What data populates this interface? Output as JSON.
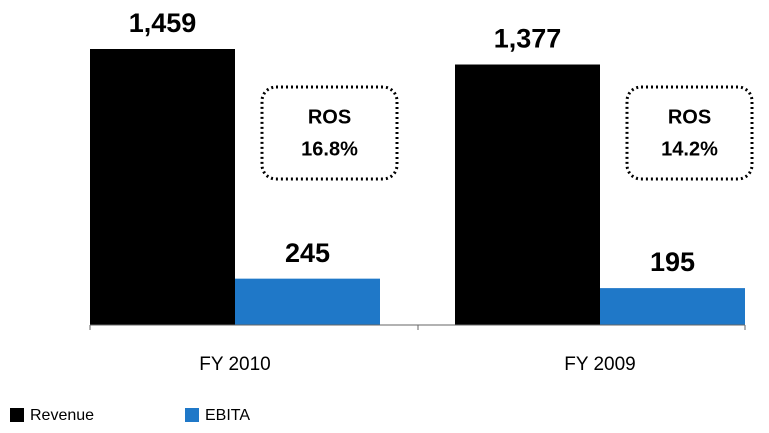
{
  "chart_data": {
    "type": "bar",
    "categories": [
      "FY 2010",
      "FY 2009"
    ],
    "series": [
      {
        "name": "Revenue",
        "color": "#000000",
        "values": [
          1459,
          1377
        ],
        "value_labels": [
          "1,459",
          "1,377"
        ]
      },
      {
        "name": "EBITA",
        "color": "#1f78c8",
        "values": [
          245,
          195
        ]
      }
    ],
    "annotations": [
      {
        "title": "ROS",
        "text": "16.8%"
      },
      {
        "title": "ROS",
        "text": "14.2%"
      }
    ]
  }
}
